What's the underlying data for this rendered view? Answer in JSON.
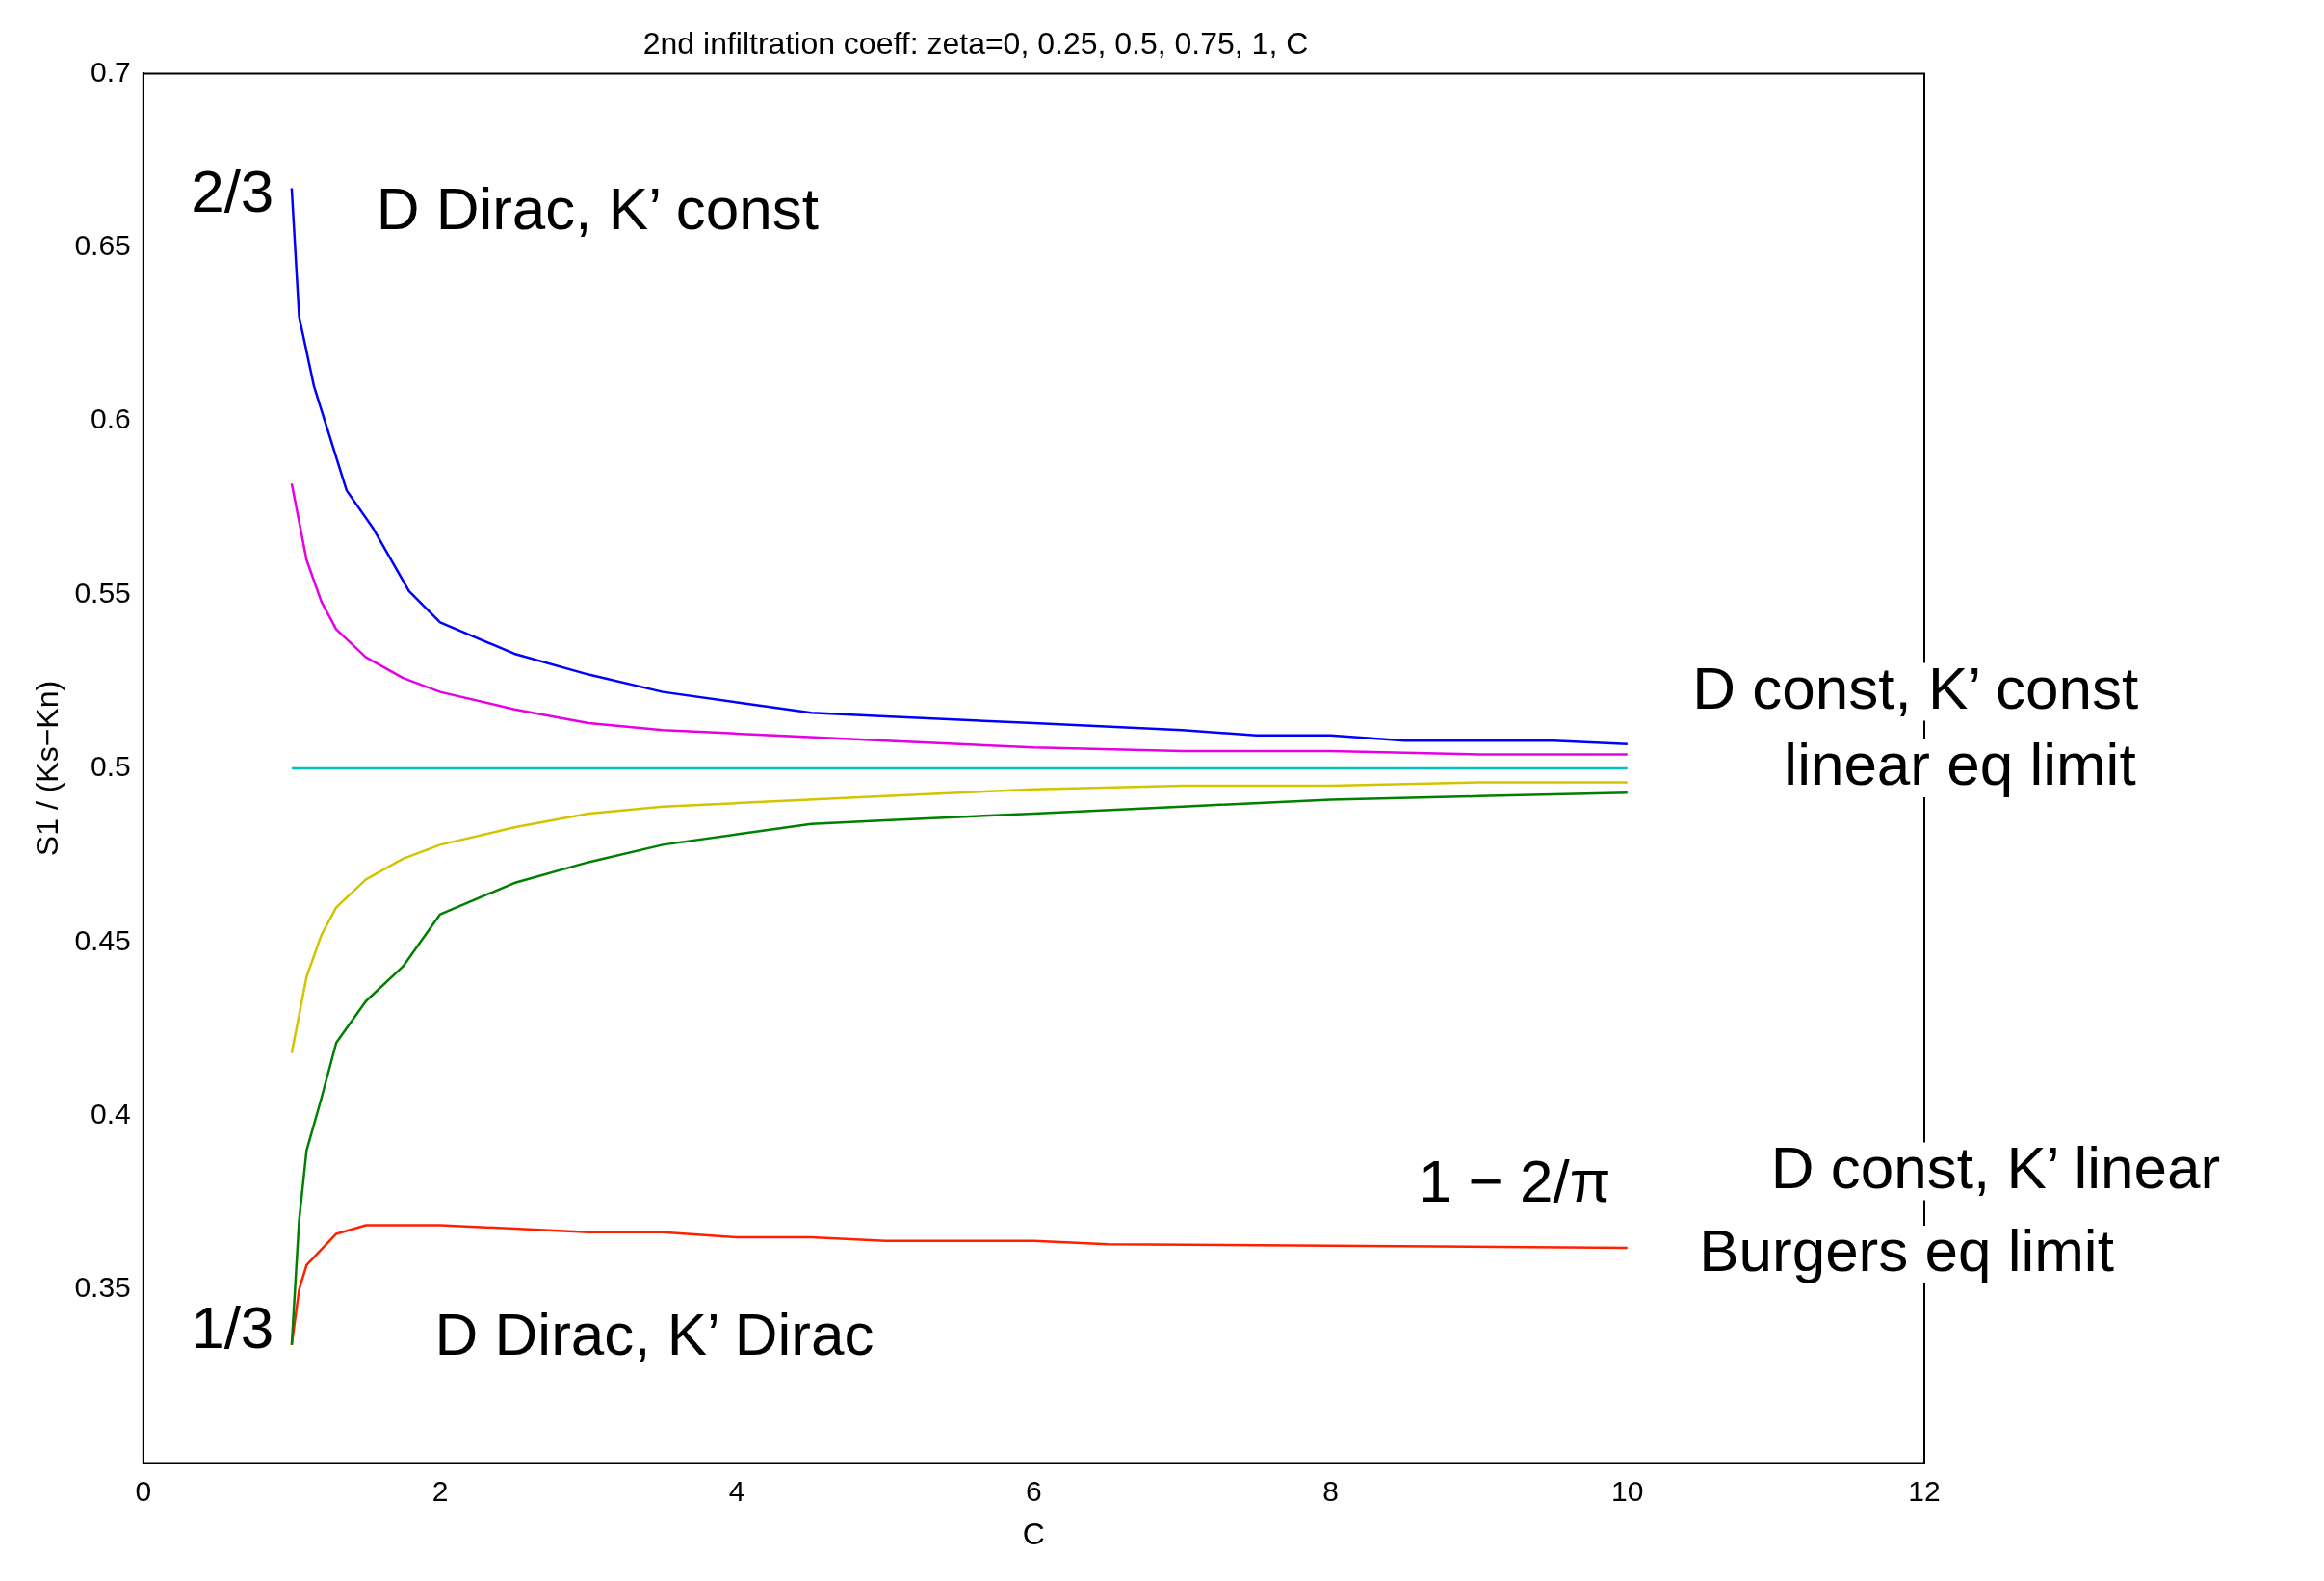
{
  "chart_data": {
    "type": "line",
    "title": "2nd infiltration coeff: zeta=0, 0.25, 0.5, 0.75, 1, C",
    "xlabel": "C",
    "ylabel": "S1 / (Ks−Kn)",
    "xlim": [
      0,
      12
    ],
    "xticks": [
      0,
      2,
      4,
      6,
      8,
      10,
      12
    ],
    "ylim": [
      0.3,
      0.7
    ],
    "yticks": [
      0.35,
      0.4,
      0.45,
      0.5,
      0.55,
      0.6,
      0.65,
      0.7
    ],
    "grid": false,
    "legend": false,
    "marker": "none",
    "line_style": "solid",
    "series": [
      {
        "color": "#0000ff",
        "x": [
          1,
          1.05,
          1.1,
          1.15,
          1.37,
          1.55,
          1.79,
          2,
          2.5,
          3,
          3.5,
          4,
          4.5,
          5,
          6,
          7,
          7.5,
          8,
          8.5,
          9,
          9.5,
          10
        ],
        "values": [
          0.667,
          0.63,
          0.62,
          0.61,
          0.58,
          0.569,
          0.551,
          0.542,
          0.533,
          0.527,
          0.522,
          0.519,
          0.516,
          0.515,
          0.513,
          0.511,
          0.5095,
          0.5095,
          0.508,
          0.508,
          0.508,
          0.507
        ]
      },
      {
        "color": "#e600e6",
        "x": [
          1,
          1.1,
          1.2,
          1.3,
          1.5,
          1.75,
          2,
          2.5,
          3,
          3.5,
          4,
          5,
          5.5,
          6,
          7,
          8,
          9,
          10
        ],
        "values": [
          0.582,
          0.56,
          0.548,
          0.54,
          0.532,
          0.526,
          0.522,
          0.517,
          0.513,
          0.511,
          0.51,
          0.508,
          0.507,
          0.506,
          0.505,
          0.505,
          0.504,
          0.504
        ]
      },
      {
        "color": "#00c0c0",
        "x": [
          1,
          10
        ],
        "values": [
          0.5,
          0.5
        ]
      },
      {
        "color": "#d4c400",
        "x": [
          1,
          1.1,
          1.2,
          1.3,
          1.5,
          1.75,
          2,
          2.5,
          3,
          3.5,
          4,
          5,
          6,
          7,
          8,
          9,
          10
        ],
        "values": [
          0.418,
          0.44,
          0.452,
          0.46,
          0.468,
          0.474,
          0.478,
          0.483,
          0.487,
          0.489,
          0.49,
          0.492,
          0.494,
          0.495,
          0.495,
          0.496,
          0.496
        ]
      },
      {
        "color": "#008000",
        "x": [
          1,
          1.05,
          1.1,
          1.2,
          1.3,
          1.5,
          1.75,
          2,
          2.5,
          3,
          3.5,
          4,
          4.5,
          5,
          6,
          7,
          8,
          9,
          10
        ],
        "values": [
          0.334,
          0.37,
          0.39,
          0.405,
          0.421,
          0.433,
          0.443,
          0.458,
          0.467,
          0.473,
          0.478,
          0.481,
          0.484,
          0.485,
          0.487,
          0.489,
          0.491,
          0.492,
          0.493
        ]
      },
      {
        "color": "#ff2000",
        "x": [
          1,
          1.05,
          1.1,
          1.3,
          1.5,
          2,
          3,
          3.5,
          4,
          4.5,
          5,
          6,
          6.5,
          10
        ],
        "values": [
          0.334,
          0.35,
          0.357,
          0.366,
          0.3685,
          0.3685,
          0.3665,
          0.3665,
          0.365,
          0.365,
          0.364,
          0.364,
          0.363,
          0.362
        ]
      }
    ],
    "annotations": [
      "2/3",
      "D Dirac, K’ const",
      "D const, K’ const",
      "linear eq limit",
      "D const, K’ linear",
      "1 − 2/π",
      "Burgers eq limit",
      "1/3",
      "D Dirac, K’ Dirac"
    ]
  }
}
